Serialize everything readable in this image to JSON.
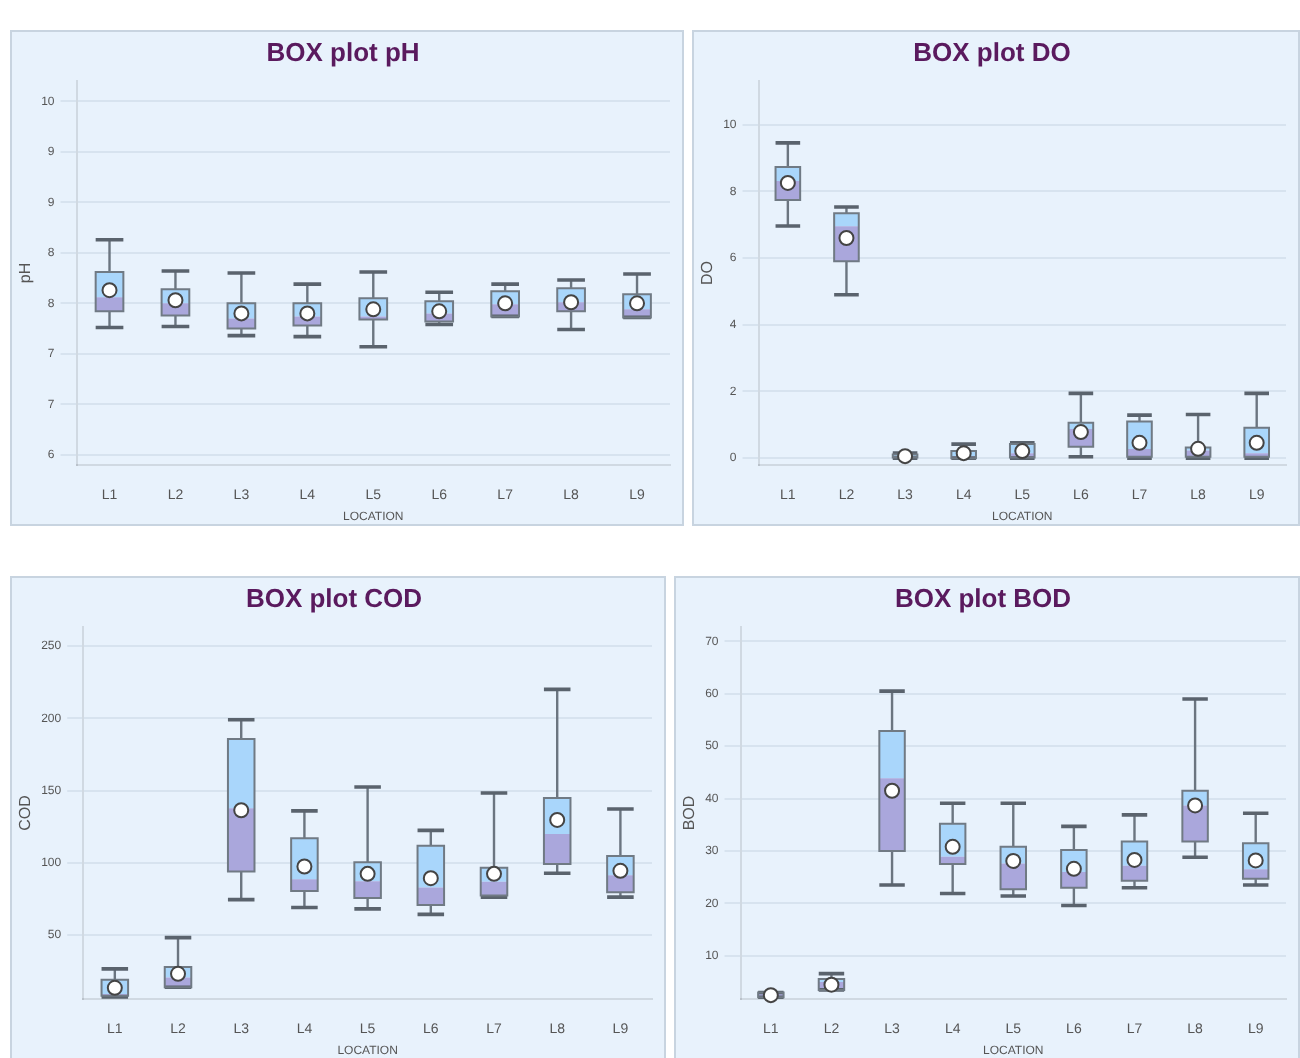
{
  "chart_data": [
    {
      "type": "box",
      "title": "BOX plot pH",
      "xlabel": "LOCATION",
      "ylabel": "pH",
      "categories": [
        "L1",
        "L2",
        "L3",
        "L4",
        "L5",
        "L6",
        "L7",
        "L8",
        "L9"
      ],
      "grid": "y",
      "ylim": [
        6.4,
        10.2
      ],
      "yticks": [
        {
          "value": 6.5,
          "label": "6"
        },
        7,
        {
          "value": 7.5,
          "label": "7"
        },
        8,
        {
          "value": 8.5,
          "label": "8"
        },
        9,
        {
          "value": 9.5,
          "label": "9"
        },
        10
      ],
      "boxes": [
        {
          "low": 7.76,
          "q1": 7.92,
          "median": 8.06,
          "q3": 8.31,
          "high": 8.63,
          "mean": 8.13
        },
        {
          "low": 7.77,
          "q1": 7.88,
          "median": 8.0,
          "q3": 8.14,
          "high": 8.32,
          "mean": 8.03
        },
        {
          "low": 7.68,
          "q1": 7.75,
          "median": 7.85,
          "q3": 8.0,
          "high": 8.3,
          "mean": 7.9
        },
        {
          "low": 7.67,
          "q1": 7.78,
          "median": 7.87,
          "q3": 8.0,
          "high": 8.19,
          "mean": 7.9
        },
        {
          "low": 7.57,
          "q1": 7.84,
          "median": 7.87,
          "q3": 8.05,
          "high": 8.31,
          "mean": 7.94
        },
        {
          "low": 7.79,
          "q1": 7.82,
          "median": 7.9,
          "q3": 8.02,
          "high": 8.11,
          "mean": 7.92
        },
        {
          "low": 7.87,
          "q1": 7.87,
          "median": 7.99,
          "q3": 8.12,
          "high": 8.19,
          "mean": 8.0
        },
        {
          "low": 7.74,
          "q1": 7.92,
          "median": 8.01,
          "q3": 8.15,
          "high": 8.23,
          "mean": 8.01
        },
        {
          "low": 7.86,
          "q1": 7.86,
          "median": 7.94,
          "q3": 8.09,
          "high": 8.29,
          "mean": 8.0
        }
      ]
    },
    {
      "type": "box",
      "title": "BOX plot DO",
      "xlabel": "LOCATION",
      "ylabel": "DO",
      "categories": [
        "L1",
        "L2",
        "L3",
        "L4",
        "L5",
        "L6",
        "L7",
        "L8",
        "L9"
      ],
      "grid": "y",
      "ylim": [
        -0.2,
        11.3
      ],
      "yticks": [
        0,
        2,
        4,
        6,
        8,
        10
      ],
      "boxes": [
        {
          "low": 6.96,
          "q1": 7.74,
          "median": 8.31,
          "q3": 8.73,
          "high": 9.45,
          "mean": 8.25
        },
        {
          "low": 4.9,
          "q1": 5.9,
          "median": 6.95,
          "q3": 7.34,
          "high": 7.53,
          "mean": 6.6
        },
        {
          "low": 0,
          "q1": 0.02,
          "median": 0.06,
          "q3": 0.11,
          "high": 0.15,
          "mean": 0.06
        },
        {
          "low": 0,
          "q1": 0,
          "median": 0.06,
          "q3": 0.21,
          "high": 0.42,
          "mean": 0.15
        },
        {
          "low": 0,
          "q1": 0.02,
          "median": 0.15,
          "q3": 0.42,
          "high": 0.46,
          "mean": 0.21
        },
        {
          "low": 0.04,
          "q1": 0.34,
          "median": 0.87,
          "q3": 1.06,
          "high": 1.94,
          "mean": 0.78
        },
        {
          "low": 0,
          "q1": 0.04,
          "median": 0.27,
          "q3": 1.1,
          "high": 1.29,
          "mean": 0.46
        },
        {
          "low": 0,
          "q1": 0.04,
          "median": 0.23,
          "q3": 0.32,
          "high": 1.31,
          "mean": 0.28
        },
        {
          "low": 0,
          "q1": 0.04,
          "median": 0.15,
          "q3": 0.91,
          "high": 1.94,
          "mean": 0.46
        }
      ]
    },
    {
      "type": "box",
      "title": "BOX plot COD",
      "xlabel": "LOCATION",
      "ylabel": "COD",
      "categories": [
        "L1",
        "L2",
        "L3",
        "L4",
        "L5",
        "L6",
        "L7",
        "L8",
        "L9"
      ],
      "grid": "y",
      "ylim": [
        6,
        263
      ],
      "yticks": [
        50,
        100,
        150,
        200,
        250
      ],
      "boxes": [
        {
          "low": 7.2,
          "q1": 8.1,
          "median": 9.3,
          "q3": 19.1,
          "high": 26.7,
          "mean": 13.6
        },
        {
          "low": 14,
          "q1": 14,
          "median": 20.8,
          "q3": 28,
          "high": 48.3,
          "mean": 23.3
        },
        {
          "low": 74.6,
          "q1": 94.1,
          "median": 137.7,
          "q3": 185.6,
          "high": 199,
          "mean": 136.4
        },
        {
          "low": 69.1,
          "q1": 80.5,
          "median": 88.6,
          "q3": 117,
          "high": 136,
          "mean": 97.5
        },
        {
          "low": 68.2,
          "q1": 75.8,
          "median": 87.3,
          "q3": 100.4,
          "high": 152.5,
          "mean": 92.4
        },
        {
          "low": 64.4,
          "q1": 70.8,
          "median": 83,
          "q3": 111.9,
          "high": 122.5,
          "mean": 89.4
        },
        {
          "low": 76.3,
          "q1": 77.5,
          "median": 86.9,
          "q3": 96.6,
          "high": 148.3,
          "mean": 92.4
        },
        {
          "low": 92.8,
          "q1": 99.2,
          "median": 119.9,
          "q3": 144.9,
          "high": 220,
          "mean": 129.7
        },
        {
          "low": 76.3,
          "q1": 79.7,
          "median": 91.5,
          "q3": 104.7,
          "high": 137.3,
          "mean": 94.5
        }
      ]
    },
    {
      "type": "box",
      "title": "BOX plot BOD",
      "xlabel": "LOCATION",
      "ylabel": "BOD",
      "categories": [
        "L1",
        "L2",
        "L3",
        "L4",
        "L5",
        "L6",
        "L7",
        "L8",
        "L9"
      ],
      "grid": "y",
      "ylim": [
        1.8,
        72.7
      ],
      "yticks": [
        10,
        20,
        30,
        40,
        50,
        60,
        70
      ],
      "boxes": [
        {
          "low": 2.1,
          "q1": 2.1,
          "median": 2.7,
          "q3": 3.0,
          "high": 3.0,
          "mean": 2.5
        },
        {
          "low": 3.5,
          "q1": 3.5,
          "median": 5.0,
          "q3": 5.6,
          "high": 6.6,
          "mean": 4.5
        },
        {
          "low": 23.5,
          "q1": 30,
          "median": 43.9,
          "q3": 52.9,
          "high": 60.5,
          "mean": 41.5
        },
        {
          "low": 21.9,
          "q1": 27.5,
          "median": 28.9,
          "q3": 35.2,
          "high": 39.1,
          "mean": 30.8
        },
        {
          "low": 21.4,
          "q1": 22.7,
          "median": 27.6,
          "q3": 30.8,
          "high": 39.1,
          "mean": 28.1
        },
        {
          "low": 19.6,
          "q1": 23,
          "median": 26,
          "q3": 30.2,
          "high": 34.7,
          "mean": 26.6
        },
        {
          "low": 23,
          "q1": 24.3,
          "median": 27.2,
          "q3": 31.8,
          "high": 36.9,
          "mean": 28.3
        },
        {
          "low": 28.8,
          "q1": 31.8,
          "median": 38.7,
          "q3": 41.5,
          "high": 59,
          "mean": 38.7
        },
        {
          "low": 23.5,
          "q1": 24.7,
          "median": 26.5,
          "q3": 31.5,
          "high": 37.2,
          "mean": 28.2
        }
      ]
    }
  ]
}
